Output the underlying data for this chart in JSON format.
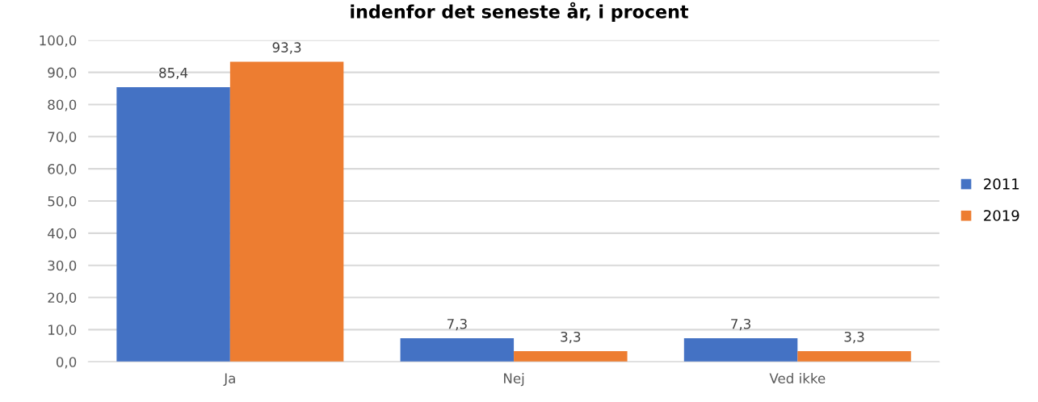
{
  "chart_data": {
    "type": "bar",
    "title": "indenfor det seneste år, i procent",
    "categories": [
      "Ja",
      "Nej",
      "Ved ikke"
    ],
    "series": [
      {
        "name": "2011",
        "color": "#4472c4",
        "values": [
          85.4,
          7.3,
          7.3
        ],
        "value_labels": [
          "85,4",
          "7,3",
          "7,3"
        ]
      },
      {
        "name": "2019",
        "color": "#ed7d31",
        "values": [
          93.3,
          3.3,
          3.3
        ],
        "value_labels": [
          "93,3",
          "3,3",
          "3,3"
        ]
      }
    ],
    "ylim": [
      0,
      100
    ],
    "yticks": [
      {
        "value": 0,
        "label": "0,0"
      },
      {
        "value": 10,
        "label": "10,0"
      },
      {
        "value": 20,
        "label": "20,0"
      },
      {
        "value": 30,
        "label": "30,0"
      },
      {
        "value": 40,
        "label": "40,0"
      },
      {
        "value": 50,
        "label": "50,0"
      },
      {
        "value": 60,
        "label": "60,0"
      },
      {
        "value": 70,
        "label": "70,0"
      },
      {
        "value": 80,
        "label": "80,0"
      },
      {
        "value": 90,
        "label": "90,0"
      },
      {
        "value": 100,
        "label": "100,0"
      }
    ],
    "grid": "y",
    "legend": "right"
  }
}
